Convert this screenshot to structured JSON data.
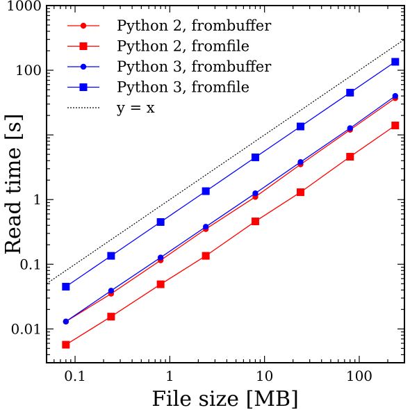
{
  "chart_data": {
    "type": "line",
    "xlabel": "File size [MB]",
    "ylabel": "Read time [s]",
    "xscale": "log",
    "yscale": "log",
    "xlim": [
      0.05,
      300
    ],
    "ylim": [
      0.003,
      1000
    ],
    "x_ticks": [
      0.1,
      1,
      10,
      100
    ],
    "x_tick_labels": [
      "0.1",
      "1",
      "10",
      "100"
    ],
    "y_ticks": [
      0.01,
      0.1,
      1,
      100,
      1000
    ],
    "y_tick_labels": [
      "0.01",
      "0.1",
      "1",
      "100",
      "1000"
    ],
    "grid": false,
    "legend_position": "top-left",
    "series": [
      {
        "name": "Python 2, frombuffer",
        "color": "#ff0000",
        "marker": "circle",
        "x": [
          0.08,
          0.24,
          0.8,
          2.4,
          8,
          24,
          80,
          240
        ],
        "y": [
          0.013,
          0.035,
          0.115,
          0.35,
          1.1,
          3.5,
          12,
          37
        ]
      },
      {
        "name": "Python 2, fromfile",
        "color": "#ff0000",
        "marker": "square",
        "x": [
          0.08,
          0.24,
          0.8,
          2.4,
          8,
          24,
          80,
          240
        ],
        "y": [
          0.0057,
          0.0155,
          0.049,
          0.135,
          0.46,
          1.3,
          4.6,
          14
        ]
      },
      {
        "name": "Python 3, frombuffer",
        "color": "#0000ff",
        "marker": "circle",
        "x": [
          0.08,
          0.24,
          0.8,
          2.4,
          8,
          24,
          80,
          240
        ],
        "y": [
          0.013,
          0.039,
          0.127,
          0.38,
          1.25,
          3.8,
          12.7,
          40
        ]
      },
      {
        "name": "Python 3, fromfile",
        "color": "#0000ff",
        "marker": "square",
        "x": [
          0.08,
          0.24,
          0.8,
          2.4,
          8,
          24,
          80,
          240
        ],
        "y": [
          0.045,
          0.135,
          0.45,
          1.35,
          4.5,
          13.5,
          45,
          135
        ]
      },
      {
        "name": "y = x",
        "color": "#000000",
        "marker": "none",
        "linestyle": "dotted",
        "x": [
          0.05,
          300
        ],
        "y": [
          0.05,
          300
        ]
      }
    ]
  }
}
